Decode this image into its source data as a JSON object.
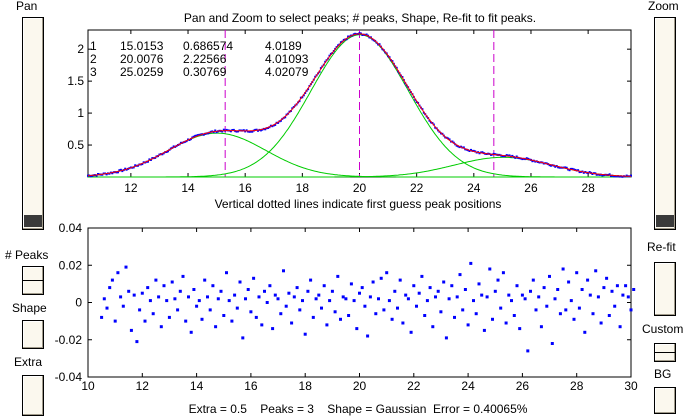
{
  "left_panel": {
    "pan_label": "Pan",
    "peaks_label": "# Peaks",
    "shape_label": "Shape",
    "extra_label": "Extra"
  },
  "right_panel": {
    "zoom_label": "Zoom",
    "refit_label": "Re-fit",
    "custom_label": "Custom",
    "bg_label": "BG"
  },
  "top_plot": {
    "title": "Pan and Zoom to select peaks; # peaks, Shape, Re-fit to fit peaks.",
    "xlabel": "Vertical dotted lines indicate first guess peak positions"
  },
  "bottom_plot": {
    "status": "Extra = 0.5    Peaks = 3    Shape = Gaussian  Error = 0.40065%"
  },
  "fit_results": [
    [
      "1",
      "15.0153",
      "0.686574",
      "4.0189"
    ],
    [
      "2",
      "20.0076",
      "2.22566",
      "4.01093"
    ],
    [
      "3",
      "25.0259",
      "0.30769",
      "4.02079"
    ]
  ],
  "chart_data": [
    {
      "type": "line",
      "title": "Pan and Zoom to select peaks; # peaks, Shape, Re-fit to fit peaks.",
      "xlabel": "Vertical dotted lines indicate first guess peak positions",
      "ylabel": "",
      "xlim": [
        10.5,
        29.5
      ],
      "ylim": [
        0,
        2.3
      ],
      "xticks": [
        "12",
        "14",
        "16",
        "18",
        "20",
        "22",
        "24",
        "26",
        "28"
      ],
      "yticks": [
        "0.5",
        "1",
        "1.5",
        "2"
      ],
      "peaks": [
        {
          "position": 15.0153,
          "height": 0.686574,
          "width": 4.0189
        },
        {
          "position": 20.0076,
          "height": 2.22566,
          "width": 4.01093
        },
        {
          "position": 25.0259,
          "height": 0.30769,
          "width": 4.02079
        }
      ],
      "first_guess_lines": [
        15.3,
        20.0,
        24.7
      ],
      "colors": {
        "data": "#0000ff",
        "total_fit": "#ff0000",
        "components": "#00cc00",
        "guess_lines": "#cc00cc"
      }
    },
    {
      "type": "scatter",
      "title": "",
      "xlabel": "",
      "ylabel": "",
      "xlim": [
        10,
        30
      ],
      "ylim": [
        -0.04,
        0.04
      ],
      "xticks": [
        "10",
        "12",
        "14",
        "16",
        "18",
        "20",
        "22",
        "24",
        "26",
        "28",
        "30"
      ],
      "yticks": [
        "0.04",
        "0.02",
        "0",
        "-0.02",
        "-0.04"
      ],
      "x_start": 10.5,
      "x_step": 0.1,
      "residuals": [
        -0.008,
        0.002,
        -0.003,
        0.008,
        0.012,
        -0.01,
        0.016,
        0.003,
        -0.002,
        0.019,
        0.006,
        -0.015,
        0.004,
        -0.021,
        -0.004,
        0.005,
        -0.01,
        0.008,
        0.001,
        -0.006,
        0.012,
        0.003,
        -0.013,
        0.009,
        0.001,
        -0.008,
        0.011,
        0.002,
        -0.004,
        0.006,
        0.014,
        -0.01,
        0.003,
        -0.016,
        0.007,
        -0.002,
        0.001,
        -0.009,
        0.012,
        0.003,
        -0.004,
        0.009,
        -0.013,
        0.002,
        0.006,
        -0.007,
        0.016,
        0.001,
        -0.01,
        0.004,
        -0.003,
        0.011,
        -0.019,
        0.002,
        0.007,
        -0.005,
        0.013,
        -0.008,
        0.003,
        -0.012,
        0.006,
        0.0,
        0.009,
        -0.014,
        0.004,
        0.002,
        -0.006,
        0.017,
        -0.002,
        0.005,
        -0.011,
        0.003,
        0.008,
        -0.004,
        0.001,
        -0.017,
        0.006,
        0.012,
        -0.008,
        0.002,
        0.004,
        -0.003,
        0.009,
        -0.012,
        0.001,
        0.006,
        -0.005,
        0.014,
        -0.009,
        0.003,
        0.002,
        -0.007,
        0.01,
        0.001,
        -0.014,
        0.005,
        0.008,
        -0.002,
        -0.018,
        0.003,
        0.011,
        -0.006,
        0.002,
        0.013,
        -0.004,
        0.016,
        0.001,
        -0.009,
        0.006,
        -0.003,
        0.012,
        -0.011,
        0.004,
        0.002,
        -0.016,
        0.009,
        -0.002,
        0.005,
        0.014,
        -0.007,
        0.001,
        0.008,
        -0.013,
        0.003,
        0.006,
        -0.005,
        0.011,
        -0.019,
        0.002,
        0.009,
        -0.008,
        0.003,
        0.015,
        -0.004,
        0.007,
        -0.012,
        0.021,
        0.001,
        -0.006,
        0.01,
        0.004,
        -0.015,
        0.003,
        0.018,
        -0.009,
        0.006,
        0.012,
        -0.003,
        0.016,
        -0.011,
        0.004,
        0.001,
        -0.007,
        0.009,
        -0.014,
        0.004,
        0.002,
        -0.026,
        0.006,
        0.012,
        -0.004,
        0.003,
        -0.013,
        0.008,
        -0.002,
        0.014,
        -0.022,
        0.002,
        0.007,
        -0.006,
        0.018,
        -0.004,
        0.011,
        0.001,
        -0.009,
        0.016,
        -0.003,
        0.007,
        -0.016,
        0.012,
        0.004,
        -0.006,
        0.017,
        0.003,
        -0.011,
        0.008,
        0.013,
        -0.007,
        0.006,
        -0.002,
        0.009,
        -0.013,
        0.004,
        0.009,
        0.003,
        -0.004,
        0.007
      ]
    }
  ]
}
